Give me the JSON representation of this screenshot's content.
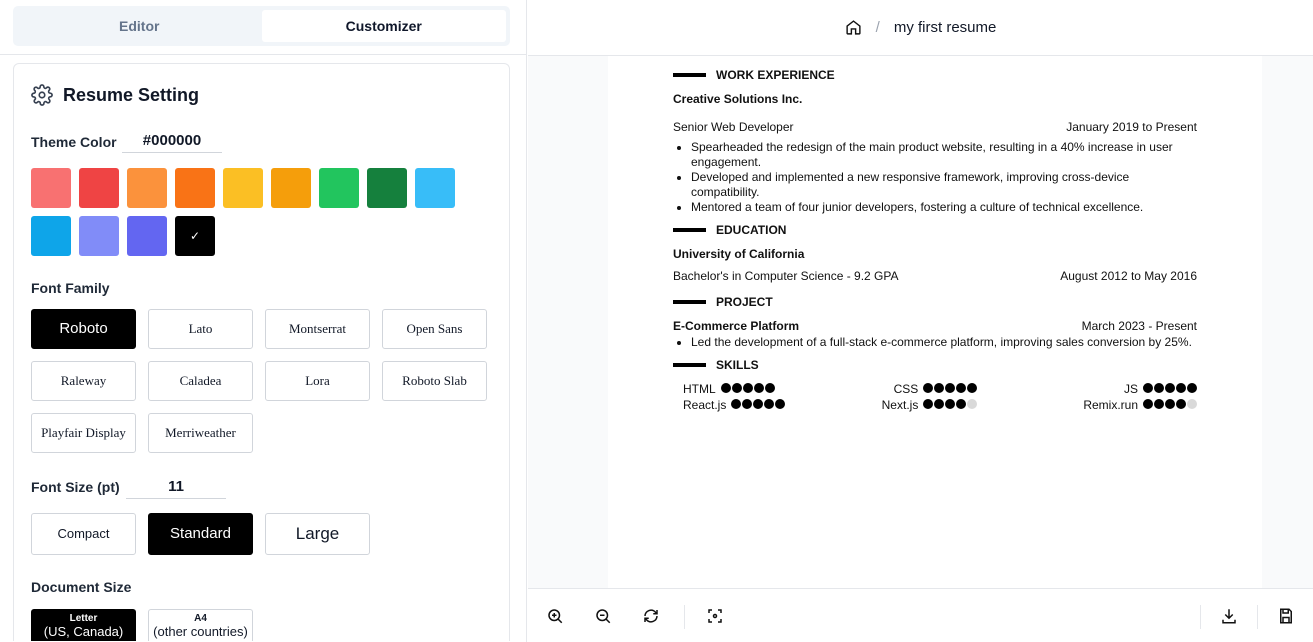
{
  "tabs": [
    {
      "label": "Editor",
      "active": false
    },
    {
      "label": "Customizer",
      "active": true
    }
  ],
  "settings": {
    "title": "Resume Setting",
    "title_icon": "gear-icon",
    "theme_color_label": "Theme Color",
    "theme_color_value": "#000000",
    "swatches": [
      "#f87171",
      "#ef4444",
      "#fb923c",
      "#f97316",
      "#fbbf24",
      "#f59e0b",
      "#22c55e",
      "#15803d",
      "#38bdf8",
      "#0ea5e9",
      "#818cf8",
      "#6366f1",
      "#000000"
    ],
    "selected_swatch": "#000000",
    "font_family_label": "Font Family",
    "fonts": [
      "Roboto",
      "Lato",
      "Montserrat",
      "Open Sans",
      "Raleway",
      "Caladea",
      "Lora",
      "Roboto Slab",
      "Playfair Display",
      "Merriweather"
    ],
    "selected_font": "Roboto",
    "font_size_label": "Font Size (pt)",
    "font_size_value": "11",
    "sizes": [
      "Compact",
      "Standard",
      "Large"
    ],
    "selected_size": "Standard",
    "doc_size_label": "Document Size",
    "docs": [
      {
        "title": "Letter",
        "sub": "(US, Canada)"
      },
      {
        "title": "A4",
        "sub": "(other countries)"
      }
    ],
    "selected_doc": "Letter"
  },
  "header": {
    "home_icon": "home-icon",
    "separator": "/",
    "title": "my first resume"
  },
  "resume": {
    "work": {
      "heading": "WORK EXPERIENCE",
      "company": "Creative Solutions Inc.",
      "role": "Senior Web Developer",
      "date": "January 2019 to Present",
      "bullets": [
        "Spearheaded the redesign of the main product website, resulting in a 40% increase in user engagement.",
        "Developed and implemented a new responsive framework, improving cross-device compatibility.",
        "Mentored a team of four junior developers, fostering a culture of technical excellence."
      ]
    },
    "education": {
      "heading": "EDUCATION",
      "school": "University of California",
      "degree": "Bachelor's in Computer Science - 9.2 GPA",
      "date": "August 2012 to May 2016"
    },
    "project": {
      "heading": "PROJECT",
      "name": "E-Commerce Platform",
      "date": "March 2023 - Present",
      "bullets": [
        "Led the development of a full-stack e-commerce platform, improving sales conversion by 25%."
      ]
    },
    "skills": {
      "heading": "SKILLS",
      "items": [
        {
          "name": "HTML",
          "level": 5
        },
        {
          "name": "CSS",
          "level": 5
        },
        {
          "name": "JS",
          "level": 5
        },
        {
          "name": "React.js",
          "level": 5
        },
        {
          "name": "Next.js",
          "level": 4
        },
        {
          "name": "Remix.run",
          "level": 4
        }
      ],
      "max": 5
    }
  },
  "toolbar": [
    "zoom-in-icon",
    "zoom-out-icon",
    "rotate-icon",
    "fit-screen-icon",
    "download-icon",
    "save-icon"
  ]
}
